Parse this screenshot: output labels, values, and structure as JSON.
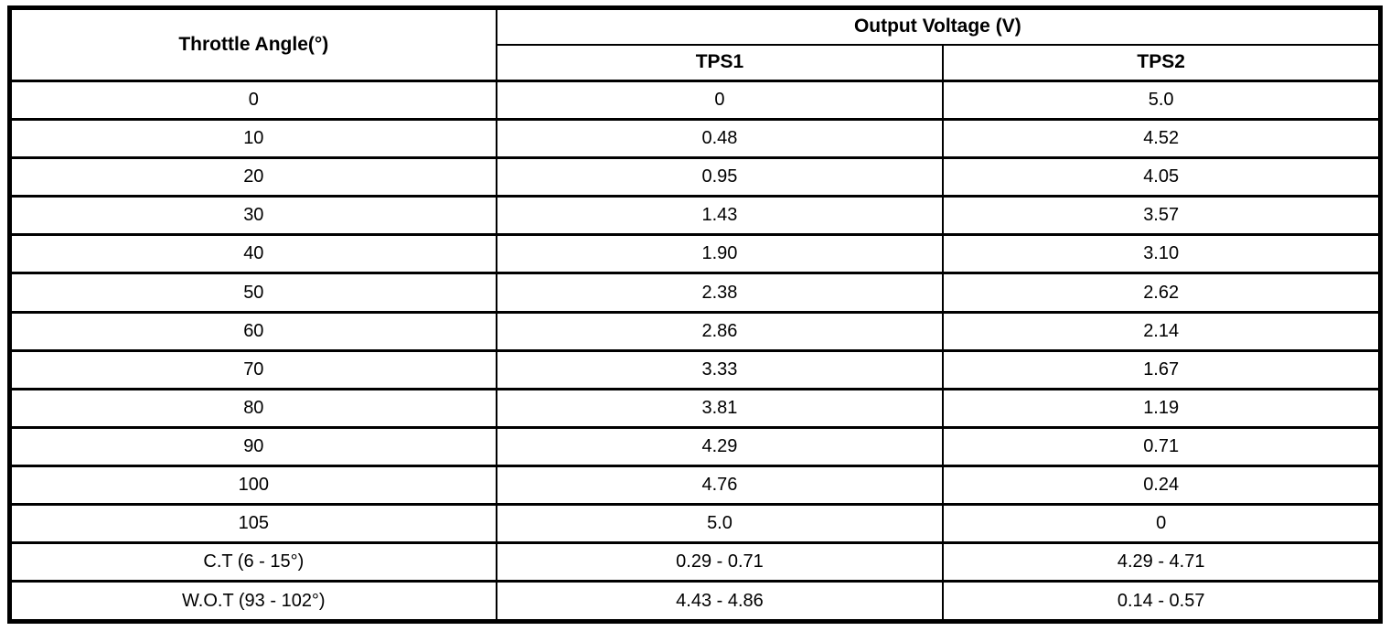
{
  "table": {
    "header": {
      "col1": "Throttle Angle(°)",
      "group": "Output Voltage (V)",
      "sub": [
        "TPS1",
        "TPS2"
      ]
    },
    "rows": [
      [
        "0",
        "0",
        "5.0"
      ],
      [
        "10",
        "0.48",
        "4.52"
      ],
      [
        "20",
        "0.95",
        "4.05"
      ],
      [
        "30",
        "1.43",
        "3.57"
      ],
      [
        "40",
        "1.90",
        "3.10"
      ],
      [
        "50",
        "2.38",
        "2.62"
      ],
      [
        "60",
        "2.86",
        "2.14"
      ],
      [
        "70",
        "3.33",
        "1.67"
      ],
      [
        "80",
        "3.81",
        "1.19"
      ],
      [
        "90",
        "4.29",
        "0.71"
      ],
      [
        "100",
        "4.76",
        "0.24"
      ],
      [
        "105",
        "5.0",
        "0"
      ],
      [
        "C.T (6 - 15°)",
        "0.29 - 0.71",
        "4.29 - 4.71"
      ],
      [
        "W.O.T (93 - 102°)",
        "4.43 - 4.86",
        "0.14 - 0.57"
      ]
    ]
  },
  "colors": {
    "border": "#000000",
    "background": "#ffffff",
    "text": "#000000"
  }
}
